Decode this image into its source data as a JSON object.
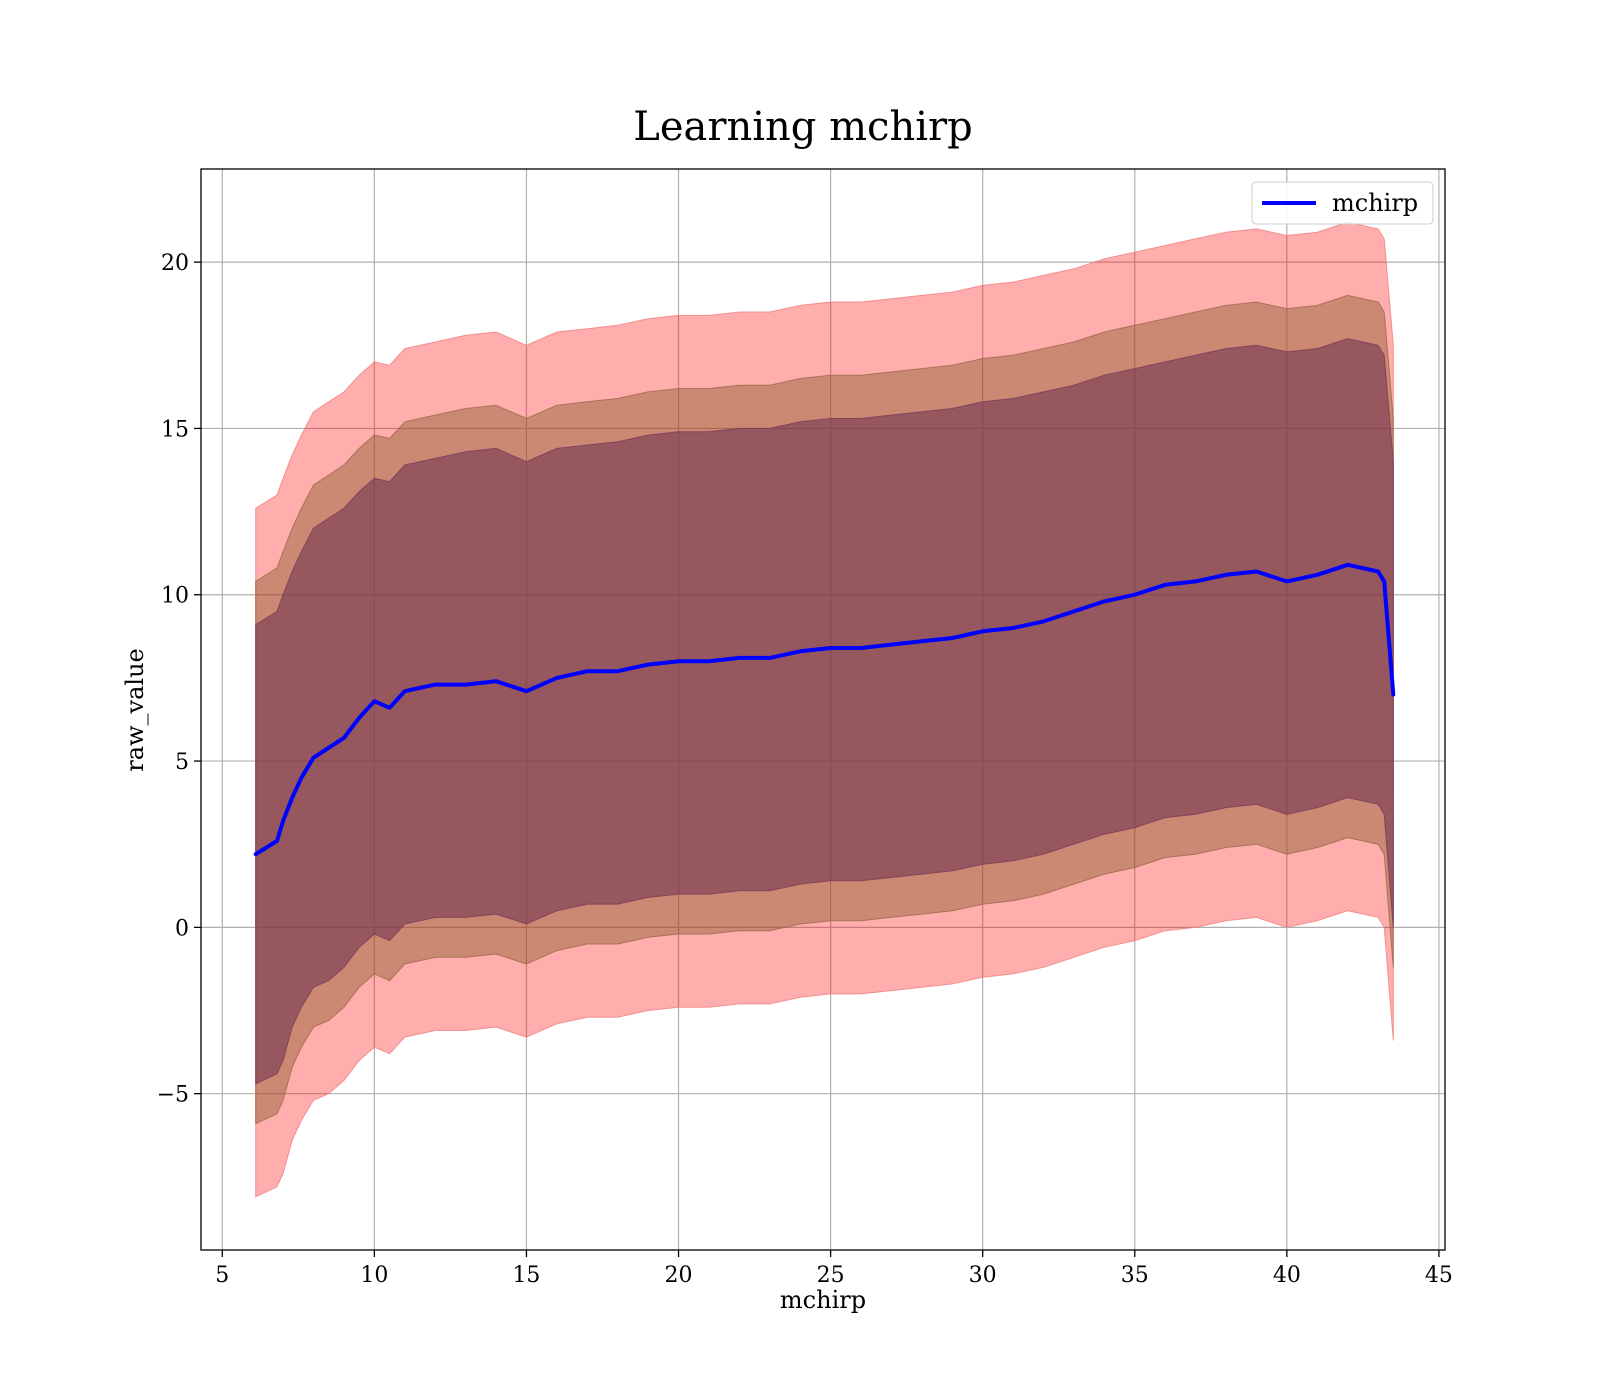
{
  "chart_data": {
    "type": "line",
    "title": "Learning mchirp",
    "xlabel": "mchirp",
    "ylabel": "raw_value",
    "xlim": [
      4.3,
      45.2
    ],
    "ylim": [
      -9.7,
      22.8
    ],
    "xticks": [
      5,
      10,
      15,
      20,
      25,
      30,
      35,
      40,
      45
    ],
    "yticks": [
      -5,
      0,
      5,
      10,
      15,
      20
    ],
    "grid": true,
    "legend": {
      "position": "top-right",
      "entries": [
        "mchirp"
      ]
    },
    "colors": {
      "line": "#0000ff",
      "band_outer": "#ff0000",
      "band_middle": "#8b5a2b",
      "band_inner": "#6b2f4f",
      "edge_outer": "#f08080",
      "edge_middle": "#9a6a4a",
      "edge_inner": "#7a3a5a"
    },
    "series": [
      {
        "name": "mchirp",
        "x": [
          6.1,
          6.8,
          7.0,
          7.3,
          7.6,
          8.0,
          8.5,
          9.0,
          9.5,
          10.0,
          10.5,
          11.0,
          12.0,
          13.0,
          14.0,
          15.0,
          16.0,
          17.0,
          18.0,
          19.0,
          20.0,
          21.0,
          22.0,
          23.0,
          24.0,
          25.0,
          26.0,
          27.0,
          28.0,
          29.0,
          30.0,
          31.0,
          32.0,
          33.0,
          34.0,
          35.0,
          36.0,
          37.0,
          38.0,
          39.0,
          40.0,
          41.0,
          42.0,
          43.0,
          43.2,
          43.5
        ],
        "y": [
          2.2,
          2.6,
          3.2,
          3.9,
          4.5,
          5.1,
          5.4,
          5.7,
          6.3,
          6.8,
          6.6,
          7.1,
          7.3,
          7.3,
          7.4,
          7.1,
          7.5,
          7.7,
          7.7,
          7.9,
          8.0,
          8.0,
          8.1,
          8.1,
          8.3,
          8.4,
          8.4,
          8.5,
          8.6,
          8.7,
          8.9,
          9.0,
          9.2,
          9.5,
          9.8,
          10.0,
          10.3,
          10.4,
          10.6,
          10.7,
          10.4,
          10.6,
          10.9,
          10.7,
          10.4,
          7.0
        ]
      }
    ],
    "bands": [
      {
        "level": "outer",
        "x": [
          6.1,
          6.8,
          7.0,
          7.3,
          7.6,
          8.0,
          8.5,
          9.0,
          9.5,
          10.0,
          10.5,
          11.0,
          12.0,
          13.0,
          14.0,
          15.0,
          16.0,
          17.0,
          18.0,
          19.0,
          20.0,
          21.0,
          22.0,
          23.0,
          24.0,
          25.0,
          26.0,
          27.0,
          28.0,
          29.0,
          30.0,
          31.0,
          32.0,
          33.0,
          34.0,
          35.0,
          36.0,
          37.0,
          38.0,
          39.0,
          40.0,
          41.0,
          42.0,
          43.0,
          43.2,
          43.5
        ],
        "upper": [
          12.6,
          13.0,
          13.5,
          14.2,
          14.8,
          15.5,
          15.8,
          16.1,
          16.6,
          17.0,
          16.9,
          17.4,
          17.6,
          17.8,
          17.9,
          17.5,
          17.9,
          18.0,
          18.1,
          18.3,
          18.4,
          18.4,
          18.5,
          18.5,
          18.7,
          18.8,
          18.8,
          18.9,
          19.0,
          19.1,
          19.3,
          19.4,
          19.6,
          19.8,
          20.1,
          20.3,
          20.5,
          20.7,
          20.9,
          21.0,
          20.8,
          20.9,
          21.2,
          21.0,
          20.7,
          17.5
        ],
        "lower": [
          -8.1,
          -7.8,
          -7.4,
          -6.4,
          -5.8,
          -5.2,
          -5.0,
          -4.6,
          -4.0,
          -3.6,
          -3.8,
          -3.3,
          -3.1,
          -3.1,
          -3.0,
          -3.3,
          -2.9,
          -2.7,
          -2.7,
          -2.5,
          -2.4,
          -2.4,
          -2.3,
          -2.3,
          -2.1,
          -2.0,
          -2.0,
          -1.9,
          -1.8,
          -1.7,
          -1.5,
          -1.4,
          -1.2,
          -0.9,
          -0.6,
          -0.4,
          -0.1,
          0.0,
          0.2,
          0.3,
          0.0,
          0.2,
          0.5,
          0.3,
          0.0,
          -3.4
        ]
      },
      {
        "level": "middle",
        "x": [
          6.1,
          6.8,
          7.0,
          7.3,
          7.6,
          8.0,
          8.5,
          9.0,
          9.5,
          10.0,
          10.5,
          11.0,
          12.0,
          13.0,
          14.0,
          15.0,
          16.0,
          17.0,
          18.0,
          19.0,
          20.0,
          21.0,
          22.0,
          23.0,
          24.0,
          25.0,
          26.0,
          27.0,
          28.0,
          29.0,
          30.0,
          31.0,
          32.0,
          33.0,
          34.0,
          35.0,
          36.0,
          37.0,
          38.0,
          39.0,
          40.0,
          41.0,
          42.0,
          43.0,
          43.2,
          43.5
        ],
        "upper": [
          10.4,
          10.8,
          11.3,
          12.0,
          12.6,
          13.3,
          13.6,
          13.9,
          14.4,
          14.8,
          14.7,
          15.2,
          15.4,
          15.6,
          15.7,
          15.3,
          15.7,
          15.8,
          15.9,
          16.1,
          16.2,
          16.2,
          16.3,
          16.3,
          16.5,
          16.6,
          16.6,
          16.7,
          16.8,
          16.9,
          17.1,
          17.2,
          17.4,
          17.6,
          17.9,
          18.1,
          18.3,
          18.5,
          18.7,
          18.8,
          18.6,
          18.7,
          19.0,
          18.8,
          18.5,
          15.3
        ],
        "lower": [
          -5.9,
          -5.6,
          -5.2,
          -4.2,
          -3.6,
          -3.0,
          -2.8,
          -2.4,
          -1.8,
          -1.4,
          -1.6,
          -1.1,
          -0.9,
          -0.9,
          -0.8,
          -1.1,
          -0.7,
          -0.5,
          -0.5,
          -0.3,
          -0.2,
          -0.2,
          -0.1,
          -0.1,
          0.1,
          0.2,
          0.2,
          0.3,
          0.4,
          0.5,
          0.7,
          0.8,
          1.0,
          1.3,
          1.6,
          1.8,
          2.1,
          2.2,
          2.4,
          2.5,
          2.2,
          2.4,
          2.7,
          2.5,
          2.2,
          -1.2
        ]
      },
      {
        "level": "inner",
        "x": [
          6.1,
          6.8,
          7.0,
          7.3,
          7.6,
          8.0,
          8.5,
          9.0,
          9.5,
          10.0,
          10.5,
          11.0,
          12.0,
          13.0,
          14.0,
          15.0,
          16.0,
          17.0,
          18.0,
          19.0,
          20.0,
          21.0,
          22.0,
          23.0,
          24.0,
          25.0,
          26.0,
          27.0,
          28.0,
          29.0,
          30.0,
          31.0,
          32.0,
          33.0,
          34.0,
          35.0,
          36.0,
          37.0,
          38.0,
          39.0,
          40.0,
          41.0,
          42.0,
          43.0,
          43.2,
          43.5
        ],
        "upper": [
          9.1,
          9.5,
          10.0,
          10.7,
          11.3,
          12.0,
          12.3,
          12.6,
          13.1,
          13.5,
          13.4,
          13.9,
          14.1,
          14.3,
          14.4,
          14.0,
          14.4,
          14.5,
          14.6,
          14.8,
          14.9,
          14.9,
          15.0,
          15.0,
          15.2,
          15.3,
          15.3,
          15.4,
          15.5,
          15.6,
          15.8,
          15.9,
          16.1,
          16.3,
          16.6,
          16.8,
          17.0,
          17.2,
          17.4,
          17.5,
          17.3,
          17.4,
          17.7,
          17.5,
          17.2,
          14.0
        ],
        "lower": [
          -4.7,
          -4.4,
          -4.0,
          -3.0,
          -2.4,
          -1.8,
          -1.6,
          -1.2,
          -0.6,
          -0.2,
          -0.4,
          0.1,
          0.3,
          0.3,
          0.4,
          0.1,
          0.5,
          0.7,
          0.7,
          0.9,
          1.0,
          1.0,
          1.1,
          1.1,
          1.3,
          1.4,
          1.4,
          1.5,
          1.6,
          1.7,
          1.9,
          2.0,
          2.2,
          2.5,
          2.8,
          3.0,
          3.3,
          3.4,
          3.6,
          3.7,
          3.4,
          3.6,
          3.9,
          3.7,
          3.4,
          0.0
        ]
      }
    ]
  }
}
